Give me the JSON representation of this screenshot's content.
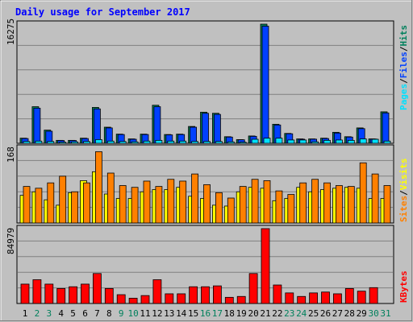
{
  "title": "Daily usage for September 2017",
  "colors": {
    "background": "#C0C0C0",
    "plot_bg": "#C0C0C0",
    "grid": "#808080",
    "title": "#0000FF",
    "weekday_label": "#000000",
    "weekend_label": "#00805C",
    "hits": "#00805C",
    "files": "#0040FF",
    "pages": "#00E0FF",
    "visits": "#FFFF00",
    "sites": "#FF8000",
    "kbytes": "#FF0000"
  },
  "chart_data": [
    {
      "type": "bar",
      "panel": "hits-files-pages",
      "y_max_label": "16275",
      "ylim": [
        0,
        16275
      ],
      "legend": {
        "hits": "Hits",
        "files": "Files",
        "pages": "Pages",
        "sep1": "/",
        "sep2": "/"
      },
      "series": [
        {
          "name": "Hits",
          "values": [
            700,
            5000,
            1800,
            400,
            400,
            700,
            4900,
            2200,
            1250,
            600,
            1250,
            5200,
            1200,
            1250,
            2300,
            4250,
            4100,
            900,
            500,
            1000,
            16275,
            2600,
            1350,
            600,
            600,
            700,
            1500,
            900,
            2100,
            600,
            4300
          ]
        },
        {
          "name": "Files",
          "values": [
            650,
            4800,
            1650,
            380,
            380,
            650,
            4700,
            2100,
            1200,
            550,
            1200,
            5000,
            1150,
            1200,
            2200,
            4100,
            3950,
            850,
            480,
            950,
            16000,
            2500,
            1300,
            560,
            560,
            650,
            1400,
            850,
            2000,
            580,
            4150
          ]
        },
        {
          "name": "Pages",
          "values": [
            250,
            300,
            250,
            150,
            200,
            250,
            500,
            300,
            250,
            200,
            300,
            400,
            300,
            300,
            250,
            250,
            250,
            200,
            150,
            550,
            700,
            700,
            450,
            450,
            200,
            400,
            450,
            400,
            600,
            550,
            300
          ]
        }
      ]
    },
    {
      "type": "bar",
      "panel": "visits-sites",
      "y_max_label": "168",
      "ylim": [
        0,
        168
      ],
      "legend": {
        "sites": "Sites",
        "visits": "Visits",
        "sep": "/"
      },
      "series": [
        {
          "name": "Visits",
          "values": [
            62,
            70,
            52,
            40,
            68,
            95,
            115,
            65,
            55,
            55,
            70,
            75,
            75,
            80,
            60,
            55,
            40,
            38,
            70,
            80,
            78,
            50,
            55,
            80,
            70,
            75,
            78,
            80,
            78,
            55,
            55
          ]
        },
        {
          "name": "Sites",
          "values": [
            82,
            78,
            90,
            105,
            70,
            90,
            160,
            112,
            84,
            80,
            94,
            82,
            98,
            94,
            110,
            86,
            68,
            56,
            82,
            98,
            95,
            72,
            64,
            90,
            98,
            90,
            84,
            82,
            135,
            110,
            84
          ]
        }
      ]
    },
    {
      "type": "bar",
      "panel": "kbytes",
      "y_max_label": "84979",
      "ylim": [
        0,
        84979
      ],
      "legend": {
        "kbytes": "KBytes"
      },
      "series": [
        {
          "name": "KBytes",
          "values": [
            22000,
            27000,
            22000,
            17000,
            19000,
            22000,
            34000,
            17000,
            10000,
            6000,
            9000,
            27000,
            11000,
            11000,
            19000,
            19000,
            20000,
            7000,
            8000,
            34000,
            84979,
            21000,
            12000,
            8000,
            12000,
            13000,
            11000,
            17000,
            14000,
            18000,
            0
          ]
        }
      ]
    }
  ],
  "days": [
    "1",
    "2",
    "3",
    "4",
    "5",
    "6",
    "7",
    "8",
    "9",
    "10",
    "11",
    "12",
    "13",
    "14",
    "15",
    "16",
    "17",
    "18",
    "19",
    "20",
    "21",
    "22",
    "23",
    "24",
    "25",
    "26",
    "27",
    "28",
    "29",
    "30",
    "31"
  ],
  "weekend_days": [
    "2",
    "3",
    "9",
    "10",
    "16",
    "17",
    "23",
    "24",
    "30",
    "31"
  ]
}
